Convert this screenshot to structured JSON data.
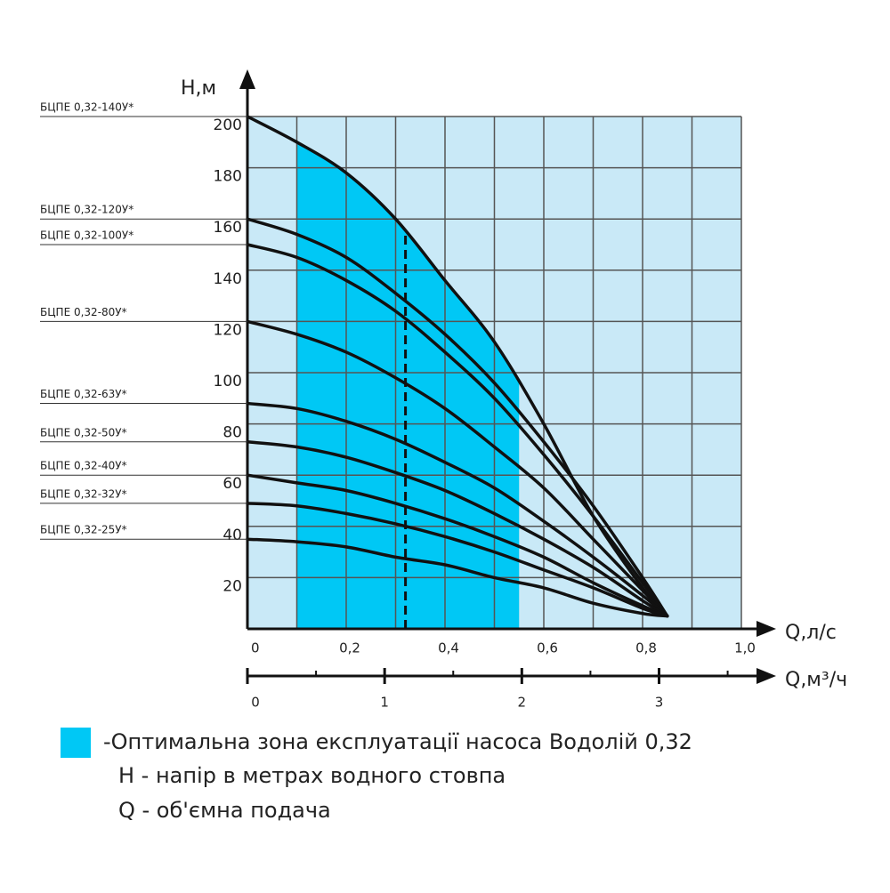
{
  "chart_data": {
    "type": "line",
    "y_label": "Н,м",
    "x_label": "Q,л/с",
    "x2_label": "Q,м³/ч",
    "xlim": [
      0,
      1.0
    ],
    "ylim": [
      0,
      200
    ],
    "x2lim": [
      0,
      3.6
    ],
    "xticks": [
      0,
      {
        "value": 0.2,
        "label": "0,2"
      },
      {
        "value": 0.4,
        "label": "0,4"
      },
      {
        "value": 0.6,
        "label": "0,6"
      },
      {
        "value": 0.8,
        "label": "0,8"
      },
      {
        "value": 1.0,
        "label": "1,0"
      }
    ],
    "yticks": [
      20,
      40,
      60,
      80,
      100,
      120,
      140,
      160,
      180,
      200
    ],
    "x2ticks": [
      0,
      1,
      2,
      3
    ],
    "x2minor": [
      0.5,
      1.5,
      2.5,
      3.5
    ],
    "xgrid": [
      0,
      0.1,
      0.2,
      0.3,
      0.4,
      0.5,
      0.6,
      0.7,
      0.8,
      0.9,
      1.0
    ],
    "ygrid": [
      0,
      20,
      40,
      60,
      80,
      100,
      120,
      140,
      160,
      180,
      200
    ],
    "grid": true,
    "background": "#c9e9f7",
    "zone_color": "#00c8f5",
    "optimal_zone": [
      0.1,
      0.55
    ],
    "nominal_q": 0.32,
    "x": [
      0,
      0.1,
      0.2,
      0.3,
      0.4,
      0.5,
      0.6,
      0.7,
      0.8,
      0.85
    ],
    "series": [
      {
        "name": "БЦПЕ 0,32-140У*",
        "color": "#111111",
        "values": [
          200,
          190,
          178,
          160,
          136,
          112,
          80,
          44,
          16,
          5
        ]
      },
      {
        "name": "БЦПЕ 0,32-120У*",
        "color": "#111111",
        "values": [
          160,
          154,
          145,
          131,
          115,
          96,
          73,
          48,
          20,
          5
        ]
      },
      {
        "name": "БЦПЕ 0,32-100У*",
        "color": "#111111",
        "values": [
          150,
          145,
          136,
          124,
          108,
          90,
          68,
          44,
          18,
          5
        ]
      },
      {
        "name": "БЦПЕ 0,32-80У*",
        "color": "#111111",
        "values": [
          120,
          115,
          108,
          98,
          86,
          71,
          55,
          35,
          15,
          5
        ]
      },
      {
        "name": "БЦПЕ 0,32-63У*",
        "color": "#111111",
        "values": [
          88,
          86,
          81,
          74,
          65,
          55,
          42,
          28,
          13,
          5
        ]
      },
      {
        "name": "БЦПЕ 0,32-50У*",
        "color": "#111111",
        "values": [
          73,
          71,
          67,
          61,
          54,
          45,
          35,
          24,
          11,
          5
        ]
      },
      {
        "name": "БЦПЕ 0,32-40У*",
        "color": "#111111",
        "values": [
          60,
          57,
          54,
          49,
          43,
          36,
          28,
          18,
          9,
          5
        ]
      },
      {
        "name": "БЦПЕ 0,32-32У*",
        "color": "#111111",
        "values": [
          49,
          48,
          45,
          41,
          36,
          30,
          23,
          16,
          8,
          5
        ]
      },
      {
        "name": "БЦПЕ 0,32-25У*",
        "color": "#111111",
        "values": [
          35,
          34,
          32,
          28,
          25,
          20,
          16,
          10,
          6,
          5
        ]
      }
    ],
    "notes": [
      "-Оптимальна зона експлуатації насоса Водолій 0,32",
      "Н - напір в метрах водного стовпа",
      "Q - об'ємна подача"
    ]
  }
}
